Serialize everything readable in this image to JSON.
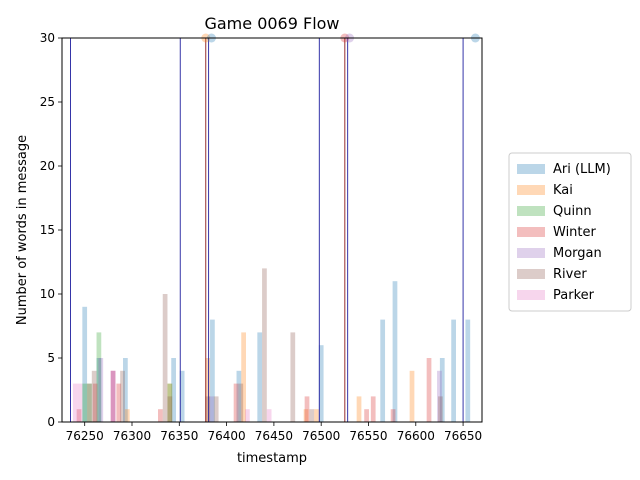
{
  "chart_data": {
    "type": "bar",
    "title": "Game 0069 Flow",
    "xlabel": "timestamp",
    "ylabel": "Number of words in message",
    "xlim": [
      76226,
      76670
    ],
    "ylim": [
      0,
      30
    ],
    "x_ticks": [
      76250,
      76300,
      76350,
      76400,
      76450,
      76500,
      76550,
      76600,
      76650
    ],
    "y_ticks": [
      0,
      5,
      10,
      15,
      20,
      25,
      30
    ],
    "grid": false,
    "legend_position": "right",
    "bar_width": 5,
    "series": [
      {
        "name": "Ari (LLM)",
        "color": "#1f77b4",
        "x": [
          76250,
          76265,
          76293,
          76344,
          76353,
          76385,
          76413,
          76435,
          76500,
          76565,
          76578,
          76628,
          76640,
          76655
        ],
        "y": [
          9,
          5,
          5,
          5,
          4,
          8,
          4,
          7,
          6,
          8,
          11,
          5,
          8,
          8
        ]
      },
      {
        "name": "Kai",
        "color": "#ff7f0e",
        "x": [
          76295,
          76340,
          76380,
          76418,
          76484,
          76495,
          76540,
          76596
        ],
        "y": [
          1,
          3,
          5,
          7,
          1,
          1,
          2,
          4
        ]
      },
      {
        "name": "Quinn",
        "color": "#2ca02c",
        "x": [
          76250,
          76255,
          76265,
          76340
        ],
        "y": [
          3,
          3,
          7,
          3
        ]
      },
      {
        "name": "Winter",
        "color": "#d62728",
        "x": [
          76244,
          76261,
          76280,
          76286,
          76330,
          76410,
          76485,
          76548,
          76555,
          76576,
          76614
        ],
        "y": [
          1,
          3,
          4,
          3,
          1,
          3,
          2,
          1,
          2,
          1,
          5
        ]
      },
      {
        "name": "Morgan",
        "color": "#9467bd",
        "x": [
          76267,
          76280,
          76384,
          76625
        ],
        "y": [
          5,
          4,
          2,
          4
        ]
      },
      {
        "name": "River",
        "color": "#8c564b",
        "x": [
          76255,
          76260,
          76290,
          76335,
          76340,
          76380,
          76389,
          76415,
          76440,
          76470,
          76490,
          76626
        ],
        "y": [
          3,
          4,
          4,
          10,
          2,
          2,
          2,
          3,
          12,
          7,
          1,
          2
        ]
      },
      {
        "name": "Parker",
        "color": "#e377c2",
        "x": [
          76240,
          76245,
          76280,
          76422,
          76445
        ],
        "y": [
          3,
          3,
          4,
          1,
          1
        ]
      }
    ],
    "event_lines": {
      "blue": [
        76235,
        76351,
        76381,
        76498,
        76528,
        76650
      ],
      "red": [
        76378,
        76525
      ]
    },
    "top_markers": [
      {
        "x": 76378,
        "color": "#ff7f0e"
      },
      {
        "x": 76384,
        "color": "#1f77b4"
      },
      {
        "x": 76525,
        "color": "#d62728"
      },
      {
        "x": 76530,
        "color": "#9467bd"
      },
      {
        "x": 76663,
        "color": "#1f77b4"
      }
    ]
  }
}
